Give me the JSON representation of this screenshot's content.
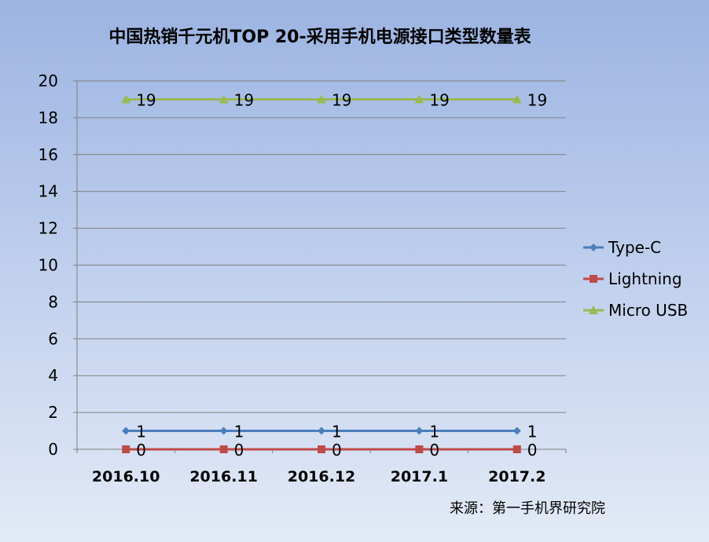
{
  "chart_data": {
    "type": "line",
    "title": "中国热销千元机TOP 20-采用手机电源接口类型数量表",
    "source": "来源：第一手机界研究院",
    "categories": [
      "2016.10",
      "2016.11",
      "2016.12",
      "2017.1",
      "2017.2"
    ],
    "ylim": [
      0,
      20
    ],
    "yticks": [
      0,
      2,
      4,
      6,
      8,
      10,
      12,
      14,
      16,
      18,
      20
    ],
    "grid": true,
    "legend_position": "right",
    "series": [
      {
        "name": "Type-C",
        "values": [
          1,
          1,
          1,
          1,
          1
        ],
        "color": "#4a7ebb",
        "marker": "diamond"
      },
      {
        "name": "Lightning",
        "values": [
          0,
          0,
          0,
          0,
          0
        ],
        "color": "#be4b48",
        "marker": "square"
      },
      {
        "name": "Micro USB",
        "values": [
          19,
          19,
          19,
          19,
          19
        ],
        "color": "#98b954",
        "marker": "triangle"
      }
    ]
  }
}
